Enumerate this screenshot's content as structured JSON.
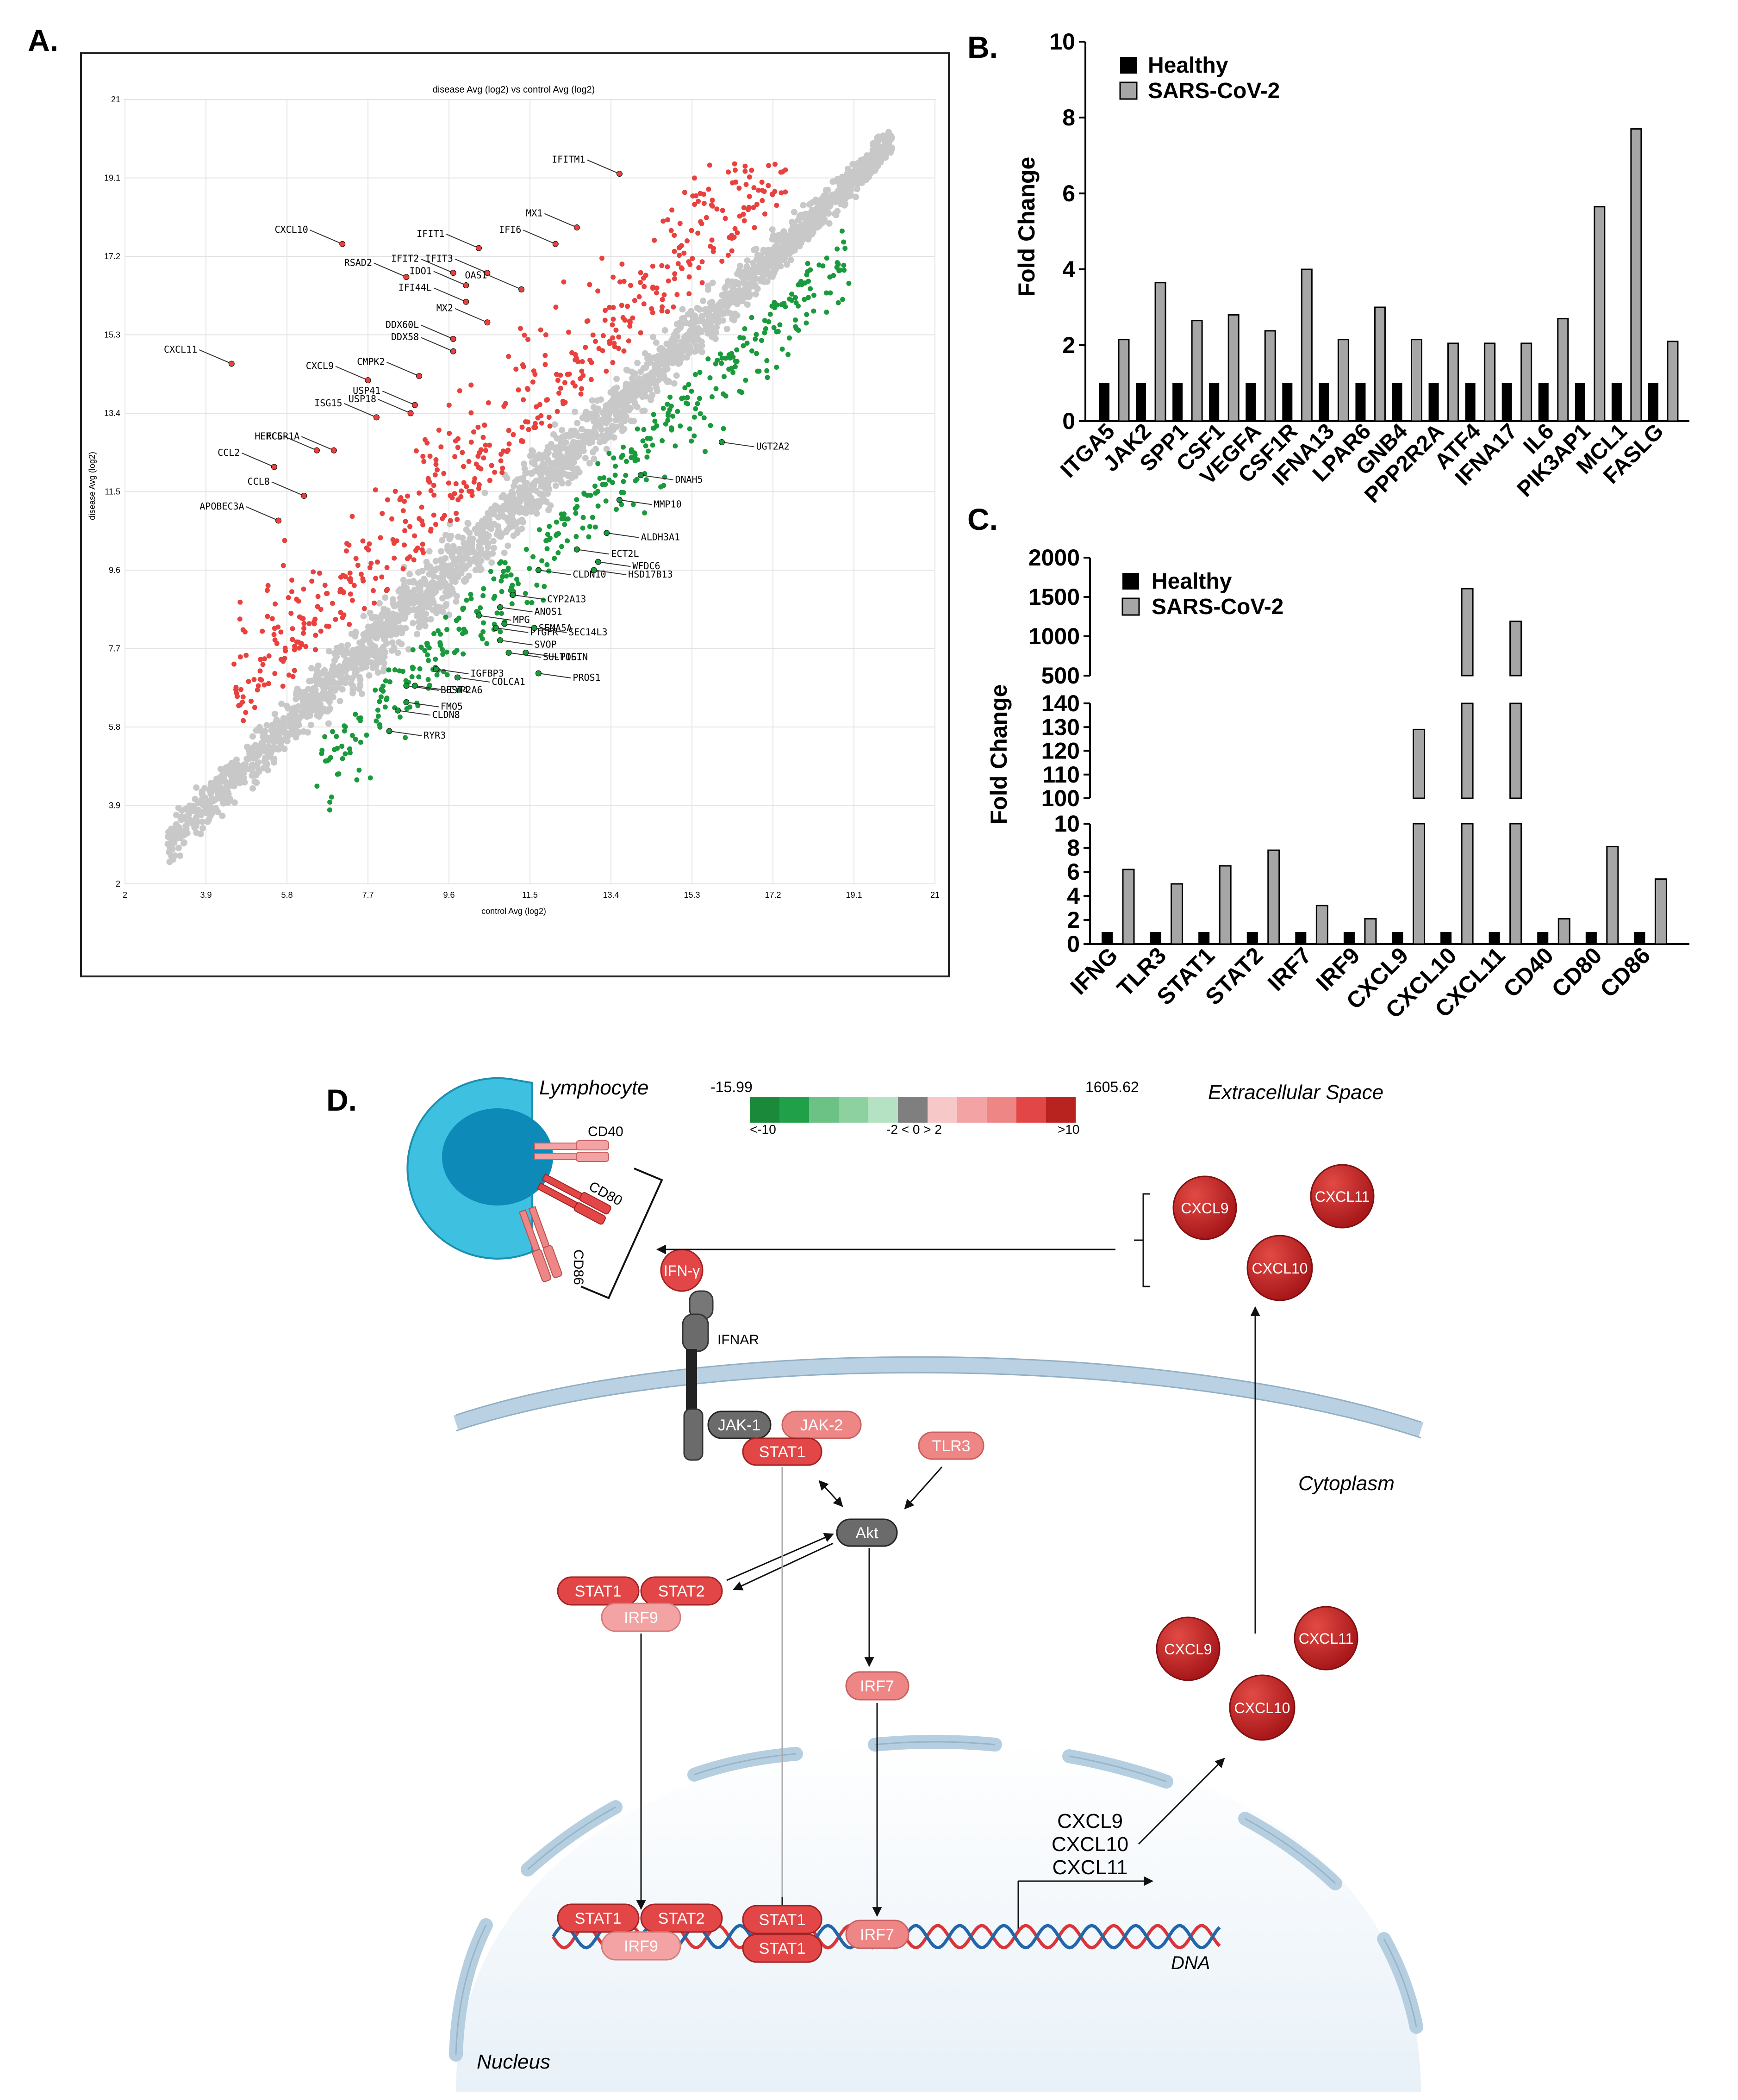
{
  "panel_labels": {
    "a": "A.",
    "b": "B.",
    "c": "C.",
    "d": "D."
  },
  "chart_data": [
    {
      "type": "scatter",
      "title": "disease Avg (log2) vs control Avg (log2)",
      "xlabel": "control Avg (log2)",
      "ylabel": "disease Avg (log2)",
      "xlim": [
        2,
        21
      ],
      "ylim": [
        2,
        21
      ],
      "x_ticks": [
        "2",
        "3.9",
        "5.8",
        "7.7",
        "9.6",
        "11.5",
        "13.4",
        "15.3",
        "17.2",
        "19.1",
        "21"
      ],
      "y_ticks": [
        "2",
        "3.9",
        "5.8",
        "7.7",
        "9.6",
        "11.5",
        "13.4",
        "15.3",
        "17.2",
        "19.1",
        "21"
      ],
      "grid": true,
      "colors": {
        "up": "#e8413e",
        "down": "#1a9a3c",
        "unchanged": "#c8c8c8"
      },
      "up_labels": [
        {
          "gene": "IFITM1",
          "x": 13.6,
          "y": 19.2
        },
        {
          "gene": "MX1",
          "x": 12.6,
          "y": 17.9
        },
        {
          "gene": "IFI6",
          "x": 12.1,
          "y": 17.5
        },
        {
          "gene": "CXCL10",
          "x": 7.1,
          "y": 17.5
        },
        {
          "gene": "IFIT1",
          "x": 10.3,
          "y": 17.4
        },
        {
          "gene": "IFIT3",
          "x": 10.5,
          "y": 16.8
        },
        {
          "gene": "IFIT2",
          "x": 9.7,
          "y": 16.8
        },
        {
          "gene": "OAS1",
          "x": 11.3,
          "y": 16.4
        },
        {
          "gene": "RSAD2",
          "x": 8.6,
          "y": 16.7
        },
        {
          "gene": "IDO1",
          "x": 10.0,
          "y": 16.5
        },
        {
          "gene": "IFI44L",
          "x": 10.0,
          "y": 16.1
        },
        {
          "gene": "MX2",
          "x": 10.5,
          "y": 15.6
        },
        {
          "gene": "DDX60L",
          "x": 9.7,
          "y": 15.2
        },
        {
          "gene": "DDX58",
          "x": 9.7,
          "y": 14.9
        },
        {
          "gene": "CXCL11",
          "x": 4.5,
          "y": 14.6
        },
        {
          "gene": "CMPK2",
          "x": 8.9,
          "y": 14.3
        },
        {
          "gene": "CXCL9",
          "x": 7.7,
          "y": 14.2
        },
        {
          "gene": "USP41",
          "x": 8.8,
          "y": 13.6
        },
        {
          "gene": "ISG15",
          "x": 7.9,
          "y": 13.3
        },
        {
          "gene": "FCGR1A",
          "x": 6.9,
          "y": 12.5
        },
        {
          "gene": "USP18",
          "x": 8.7,
          "y": 13.4
        },
        {
          "gene": "HERC5",
          "x": 6.5,
          "y": 12.5
        },
        {
          "gene": "CCL2",
          "x": 5.5,
          "y": 12.1
        },
        {
          "gene": "CCL8",
          "x": 6.2,
          "y": 11.4
        },
        {
          "gene": "APOBEC3A",
          "x": 5.6,
          "y": 10.8
        }
      ],
      "down_labels": [
        {
          "gene": "UGT2A2",
          "x": 16.0,
          "y": 12.7
        },
        {
          "gene": "DNAH5",
          "x": 14.1,
          "y": 11.9
        },
        {
          "gene": "MMP10",
          "x": 13.6,
          "y": 11.3
        },
        {
          "gene": "ALDH3A1",
          "x": 13.3,
          "y": 10.5
        },
        {
          "gene": "ECT2L",
          "x": 12.6,
          "y": 10.1
        },
        {
          "gene": "WFDC6",
          "x": 13.1,
          "y": 9.8
        },
        {
          "gene": "CLDN10",
          "x": 11.7,
          "y": 9.6
        },
        {
          "gene": "HSD17B13",
          "x": 13.0,
          "y": 9.6
        },
        {
          "gene": "CYP2A13",
          "x": 11.1,
          "y": 9.0
        },
        {
          "gene": "ANOS1",
          "x": 10.8,
          "y": 8.7
        },
        {
          "gene": "MPG",
          "x": 10.3,
          "y": 8.5
        },
        {
          "gene": "SEMA5A",
          "x": 10.9,
          "y": 8.3
        },
        {
          "gene": "PTGFR",
          "x": 10.7,
          "y": 8.2
        },
        {
          "gene": "SEC14L3",
          "x": 11.6,
          "y": 8.2
        },
        {
          "gene": "SVOP",
          "x": 10.8,
          "y": 7.9
        },
        {
          "gene": "POSTN",
          "x": 11.4,
          "y": 7.6
        },
        {
          "gene": "SULT1E1",
          "x": 11.0,
          "y": 7.6
        },
        {
          "gene": "PROS1",
          "x": 11.7,
          "y": 7.1
        },
        {
          "gene": "COLCA1",
          "x": 9.8,
          "y": 7.0
        },
        {
          "gene": "IGFBP3",
          "x": 9.3,
          "y": 7.2
        },
        {
          "gene": "BEST4",
          "x": 8.6,
          "y": 6.8
        },
        {
          "gene": "CYP2A6",
          "x": 8.8,
          "y": 6.8
        },
        {
          "gene": "FMO5",
          "x": 8.6,
          "y": 6.4
        },
        {
          "gene": "CLDN8",
          "x": 8.4,
          "y": 6.2
        },
        {
          "gene": "RYR3",
          "x": 8.2,
          "y": 5.7
        }
      ]
    },
    {
      "type": "bar",
      "ylabel": "Fold Change",
      "ylim": [
        0,
        10
      ],
      "y_ticks": [
        "0",
        "2",
        "4",
        "6",
        "8",
        "10"
      ],
      "categories": [
        "ITGA5",
        "JAK2",
        "SPP1",
        "CSF1",
        "VEGFA",
        "CSF1R",
        "IFNA13",
        "LPAR6",
        "GNB4",
        "PPP2R2A",
        "ATF4",
        "IFNA17",
        "IL6",
        "PIK3AP1",
        "MCL1",
        "FASLG"
      ],
      "series": [
        {
          "name": "Healthy",
          "color": "#000000",
          "values": [
            1,
            1,
            1,
            1,
            1,
            1,
            1,
            1,
            1,
            1,
            1,
            1,
            1,
            1,
            1,
            1
          ]
        },
        {
          "name": "SARS-CoV-2",
          "color": "#a6a6a6",
          "values": [
            2.15,
            3.65,
            2.65,
            2.8,
            2.38,
            4.0,
            2.15,
            3.0,
            2.15,
            2.05,
            2.05,
            2.05,
            2.7,
            5.65,
            7.7,
            2.1
          ]
        }
      ],
      "legend": "top-left"
    },
    {
      "type": "bar",
      "ylabel": "Fold Change",
      "y_axis_broken": true,
      "y_ticks_lower": [
        "0",
        "2",
        "4",
        "6",
        "8",
        "10"
      ],
      "y_ticks_middle": [
        "100",
        "110",
        "120",
        "130",
        "140"
      ],
      "y_ticks_upper": [
        "500",
        "1000",
        "1500",
        "2000"
      ],
      "categories": [
        "IFNG",
        "TLR3",
        "STAT1",
        "STAT2",
        "IRF7",
        "IRF9",
        "CXCL9",
        "CXCL10",
        "CXCL11",
        "CD40",
        "CD80",
        "CD86"
      ],
      "series": [
        {
          "name": "Healthy",
          "color": "#000000",
          "values": [
            1,
            1,
            1,
            1,
            1,
            1,
            1,
            1,
            1,
            1,
            1,
            1
          ]
        },
        {
          "name": "SARS-CoV-2",
          "color": "#a6a6a6",
          "values": [
            6.2,
            5.0,
            6.5,
            7.8,
            3.2,
            2.1,
            129,
            1605.62,
            1190,
            2.1,
            8.1,
            5.4
          ]
        }
      ],
      "legend": "top-left"
    }
  ],
  "pathway": {
    "scale": {
      "min_label": "-15.99",
      "max_label": "1605.62",
      "low_label": "<-10",
      "mid_label": "-2 < 0 > 2",
      "high_label": ">10",
      "colors": [
        "#1a8a3a",
        "#21a04a",
        "#6cc184",
        "#8dd1a0",
        "#b5e2c2",
        "#7f7f7f",
        "#f6c8c8",
        "#f3a3a3",
        "#ee8686",
        "#e34646",
        "#b8231f"
      ]
    },
    "regions": {
      "lymphocyte": "Lymphocyte",
      "extracellular": "Extracellular Space",
      "cytoplasm": "Cytoplasm",
      "nucleus": "Nucleus",
      "dna": "DNA"
    },
    "nodes": {
      "cd40": "CD40",
      "cd80": "CD80",
      "cd86": "CD86",
      "ifng": "IFN-γ",
      "ifnar": "IFNAR",
      "jak1": "JAK-1",
      "jak2": "JAK-2",
      "stat1_mem": "STAT1",
      "tlr3": "TLR3",
      "akt": "Akt",
      "stat1_c": "STAT1",
      "stat2_c": "STAT2",
      "irf9_c": "IRF9",
      "irf7_c": "IRF7",
      "stat1_n": "STAT1",
      "stat2_n": "STAT2",
      "irf9_n": "IRF9",
      "stat1_na": "STAT1",
      "stat1_nb": "STAT1",
      "irf7_n": "IRF7",
      "cxcl9_top": "CXCL9",
      "cxcl10_top": "CXCL10",
      "cxcl11_top": "CXCL11",
      "cxcl9_bot": "CXCL9",
      "cxcl10_bot": "CXCL10",
      "cxcl11_bot": "CXCL11",
      "gene1": "CXCL9",
      "gene2": "CXCL10",
      "gene3": "CXCL11"
    }
  }
}
